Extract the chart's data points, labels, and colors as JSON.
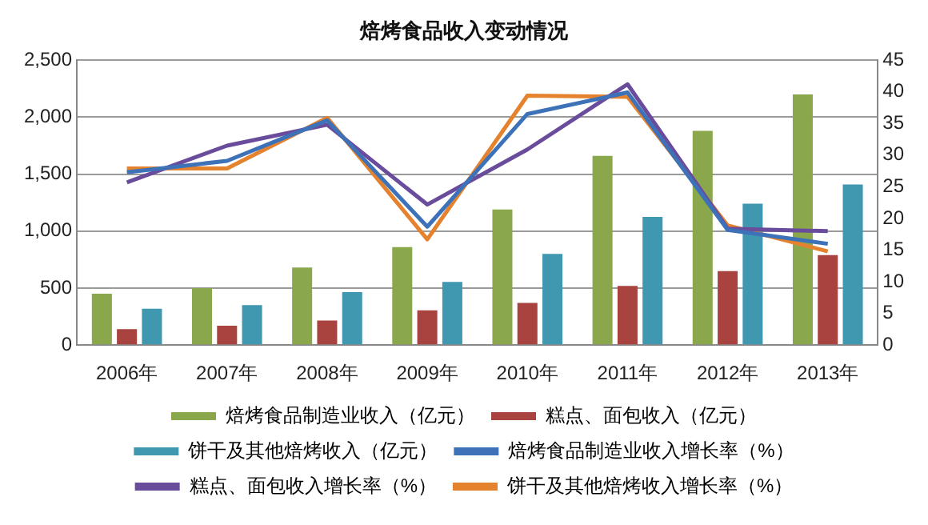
{
  "chart_data": {
    "type": "bar",
    "title": "焙烤食品收入变动情况",
    "categories": [
      "2006年",
      "2007年",
      "2008年",
      "2009年",
      "2010年",
      "2011年",
      "2012年",
      "2013年"
    ],
    "series": [
      {
        "name": "焙烤食品制造业收入（亿元）",
        "color": "#8aa84b",
        "values": [
          450,
          500,
          680,
          860,
          1190,
          1660,
          1880,
          2200
        ]
      },
      {
        "name": "糕点、面包收入（亿元）",
        "color": "#a84340",
        "values": [
          140,
          170,
          215,
          305,
          370,
          520,
          650,
          790
        ]
      },
      {
        "name": "饼干及其他焙烤收入（亿元）",
        "color": "#3f97b0",
        "values": [
          320,
          350,
          465,
          555,
          800,
          1125,
          1240,
          1410
        ]
      },
      {
        "name": "焙烤食品制造业收入增长率（%）",
        "type": "line",
        "axis": "y2",
        "color": "#3d72b8",
        "values": [
          27.3,
          29.1,
          35.5,
          18.7,
          36.5,
          39.9,
          18.2,
          16.0
        ]
      },
      {
        "name": "糕点、面包收入增长率（%）",
        "type": "line",
        "axis": "y2",
        "color": "#6a4c9c",
        "values": [
          25.7,
          31.5,
          34.8,
          22.2,
          30.9,
          41.2,
          18.4,
          18.0
        ]
      },
      {
        "name": "饼干及其他焙烤收入增长率（%）",
        "type": "line",
        "axis": "y2",
        "color": "#e5822e",
        "values": [
          27.9,
          27.9,
          35.9,
          16.7,
          39.4,
          39.2,
          18.9,
          14.8
        ]
      }
    ],
    "ylim": [
      0,
      2500
    ],
    "yticks": [
      {
        "value": 0,
        "label": "0"
      },
      {
        "value": 500,
        "label": "500"
      },
      {
        "value": 1000,
        "label": "1,000"
      },
      {
        "value": 1500,
        "label": "1,500"
      },
      {
        "value": 2000,
        "label": "2,000"
      },
      {
        "value": 2500,
        "label": "2,500"
      }
    ],
    "y2lim": [
      0,
      45
    ],
    "y2ticks": [
      0,
      5,
      10,
      15,
      20,
      25,
      30,
      35,
      40,
      45
    ],
    "grid": "y",
    "legend": "bottom",
    "marker": "none"
  }
}
